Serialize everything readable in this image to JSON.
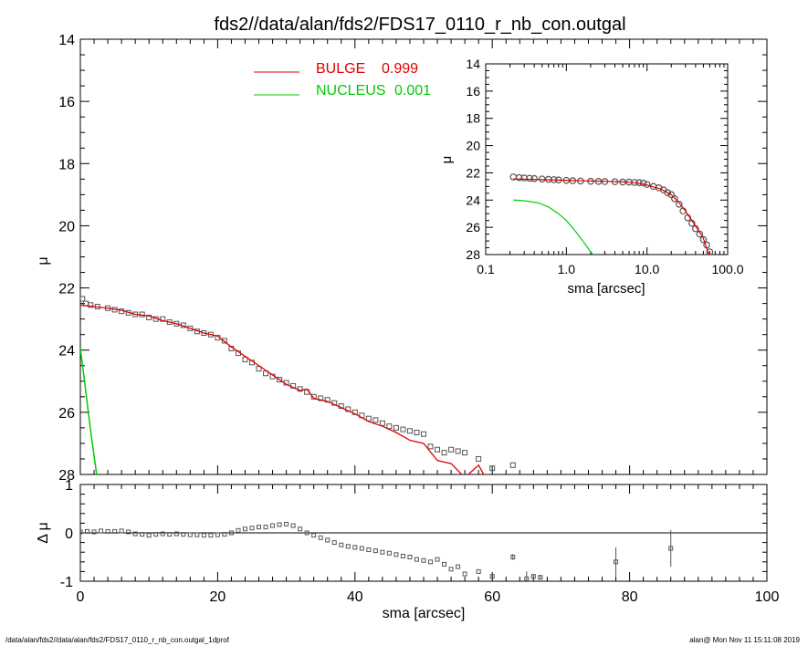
{
  "title": "fds2//data/alan/fds2/FDS17_0110_r_nb_con.outgal",
  "footer_left": "/data/alan/fds2//data/alan/fds2/FDS17_0110_r_nb_con.outgal_1dprof",
  "footer_right": "alan@  Mon Nov 11 15:11:08 2019",
  "colors": {
    "data": "#555555",
    "bulge": "#e00000",
    "nucleus": "#00cc00",
    "axes": "#000000"
  },
  "chart_data": [
    {
      "id": "main",
      "type": "scatter",
      "ylabel": "μ",
      "xlim": [
        0,
        100
      ],
      "ylim": [
        28,
        14
      ],
      "yticks": [
        "14",
        "16",
        "18",
        "20",
        "22",
        "24",
        "26",
        "28"
      ],
      "legend": [
        {
          "name": "BULGE",
          "value": "0.999",
          "color": "#e00000"
        },
        {
          "name": "NUCLEUS",
          "value": "0.001",
          "color": "#00cc00"
        }
      ],
      "legend_position": "top-left",
      "series": [
        {
          "name": "data",
          "x": [
            0.3,
            0.8,
            1.5,
            2.5,
            4,
            5,
            6,
            7,
            8,
            9,
            10,
            11,
            12,
            13,
            14,
            15,
            16,
            17,
            18,
            19,
            20,
            21,
            22,
            23,
            24,
            25,
            26,
            27,
            28,
            29,
            30,
            31,
            32,
            33,
            34,
            35,
            36,
            37,
            38,
            39,
            40,
            41,
            42,
            43,
            44,
            45,
            46,
            47,
            48,
            49,
            50,
            51,
            52,
            53,
            54,
            55,
            56,
            58,
            60,
            63,
            67,
            74
          ],
          "y": [
            22.35,
            22.5,
            22.55,
            22.6,
            22.65,
            22.7,
            22.75,
            22.8,
            22.85,
            22.85,
            22.95,
            23.0,
            23.0,
            23.1,
            23.15,
            23.2,
            23.3,
            23.4,
            23.45,
            23.5,
            23.6,
            23.7,
            23.95,
            24.1,
            24.3,
            24.4,
            24.6,
            24.75,
            24.85,
            24.95,
            25.05,
            25.15,
            25.25,
            25.35,
            25.5,
            25.55,
            25.6,
            25.7,
            25.8,
            25.9,
            26.0,
            26.1,
            26.2,
            26.25,
            26.35,
            26.45,
            26.5,
            26.55,
            26.6,
            26.65,
            26.7,
            27.1,
            27.2,
            27.3,
            27.2,
            27.25,
            27.3,
            27.5,
            27.8,
            27.7,
            28.1,
            28.15
          ]
        },
        {
          "name": "bulge",
          "x": [
            0,
            2,
            4,
            6,
            8,
            10,
            12,
            14,
            16,
            18,
            20,
            22,
            24,
            26,
            28,
            30,
            31,
            32,
            33,
            34,
            36,
            38,
            40,
            42,
            44,
            46,
            48,
            50,
            52,
            54,
            56,
            57,
            58,
            59
          ],
          "y": [
            22.55,
            22.6,
            22.65,
            22.72,
            22.85,
            22.9,
            23.05,
            23.15,
            23.3,
            23.45,
            23.55,
            23.9,
            24.2,
            24.5,
            24.8,
            25.1,
            25.2,
            25.3,
            25.25,
            25.55,
            25.65,
            25.85,
            26.05,
            26.3,
            26.45,
            26.65,
            26.9,
            27.0,
            27.55,
            27.65,
            28.1,
            27.9,
            27.7,
            28.1
          ]
        },
        {
          "name": "nucleus",
          "x": [
            0,
            0.5,
            1,
            1.5,
            2,
            2.5
          ],
          "y": [
            23.95,
            24.8,
            25.7,
            26.6,
            27.4,
            28.2
          ]
        }
      ]
    },
    {
      "id": "residual",
      "type": "scatter",
      "xlabel": "sma [arcsec]",
      "ylabel": "Δ μ",
      "xlim": [
        0,
        100
      ],
      "ylim": [
        -1,
        1
      ],
      "xticks": [
        "0",
        "20",
        "40",
        "60",
        "80",
        "100"
      ],
      "yticks": [
        "1",
        "0",
        "-1"
      ],
      "reference_line": 0,
      "series": [
        {
          "name": "residual",
          "x": [
            0,
            1,
            2,
            3,
            4,
            5,
            6,
            7,
            8,
            9,
            10,
            11,
            12,
            13,
            14,
            15,
            16,
            17,
            18,
            19,
            20,
            21,
            22,
            23,
            24,
            25,
            26,
            27,
            28,
            29,
            30,
            31,
            32,
            33,
            34,
            35,
            36,
            37,
            38,
            39,
            40,
            41,
            42,
            43,
            44,
            45,
            46,
            47,
            48,
            49,
            50,
            51,
            52,
            53,
            54,
            55,
            56,
            58,
            60,
            63,
            65,
            66,
            67,
            78,
            86
          ],
          "y": [
            0.02,
            0.03,
            0.02,
            0.04,
            0.03,
            0.03,
            0.04,
            0.02,
            -0.02,
            -0.03,
            -0.05,
            -0.03,
            -0.02,
            -0.03,
            -0.02,
            -0.03,
            -0.04,
            -0.04,
            -0.05,
            -0.05,
            -0.04,
            -0.03,
            0.0,
            0.05,
            0.08,
            0.1,
            0.12,
            0.12,
            0.15,
            0.17,
            0.18,
            0.15,
            0.08,
            0.0,
            -0.05,
            -0.1,
            -0.15,
            -0.2,
            -0.25,
            -0.28,
            -0.3,
            -0.32,
            -0.35,
            -0.37,
            -0.4,
            -0.42,
            -0.45,
            -0.48,
            -0.5,
            -0.55,
            -0.57,
            -0.6,
            -0.55,
            -0.65,
            -0.75,
            -0.7,
            -0.85,
            -0.8,
            -0.9,
            -0.5,
            -0.95,
            -0.9,
            -0.92,
            -0.6,
            -0.32
          ],
          "err": [
            0,
            0,
            0,
            0,
            0,
            0,
            0,
            0,
            0,
            0,
            0,
            0,
            0,
            0,
            0,
            0,
            0,
            0,
            0,
            0,
            0,
            0,
            0,
            0,
            0,
            0,
            0,
            0,
            0,
            0,
            0,
            0,
            0,
            0,
            0,
            0,
            0,
            0,
            0,
            0,
            0,
            0,
            0,
            0,
            0,
            0,
            0,
            0,
            0,
            0,
            0,
            0,
            0,
            0,
            0,
            0,
            0,
            0,
            0,
            0.06,
            0.15,
            0.05,
            0.05,
            0.3,
            0.38
          ]
        }
      ]
    },
    {
      "id": "inset",
      "type": "scatter",
      "xlabel": "sma [arcsec]",
      "ylabel": "μ",
      "xscale": "log",
      "xlim": [
        0.1,
        100
      ],
      "ylim": [
        28,
        14
      ],
      "xticks": [
        "0.1",
        "1.0",
        "10.0",
        "100.0"
      ],
      "yticks": [
        "14",
        "16",
        "18",
        "20",
        "22",
        "24",
        "26",
        "28"
      ],
      "series": [
        {
          "name": "data",
          "x": [
            0.22,
            0.26,
            0.3,
            0.35,
            0.4,
            0.5,
            0.6,
            0.7,
            0.8,
            1.0,
            1.2,
            1.5,
            2,
            2.5,
            3,
            4,
            5,
            6,
            7,
            8,
            9,
            10,
            12,
            14,
            16,
            18,
            20,
            22,
            25,
            28,
            32,
            36,
            40,
            45,
            50,
            55,
            60
          ],
          "y": [
            22.3,
            22.35,
            22.38,
            22.4,
            22.42,
            22.45,
            22.48,
            22.5,
            22.52,
            22.55,
            22.58,
            22.6,
            22.62,
            22.63,
            22.64,
            22.65,
            22.67,
            22.68,
            22.7,
            22.72,
            22.75,
            22.85,
            23.0,
            23.1,
            23.25,
            23.45,
            23.6,
            23.9,
            24.3,
            24.8,
            25.3,
            25.7,
            26.1,
            26.5,
            26.9,
            27.3,
            27.8
          ]
        },
        {
          "name": "bulge",
          "x": [
            0.22,
            0.5,
            1,
            2,
            3,
            5,
            7,
            10,
            15,
            20,
            25,
            30,
            40,
            50,
            60
          ],
          "y": [
            22.45,
            22.5,
            22.55,
            22.6,
            22.62,
            22.66,
            22.72,
            22.9,
            23.2,
            23.6,
            24.2,
            24.8,
            25.9,
            26.8,
            28.2
          ]
        },
        {
          "name": "nucleus",
          "x": [
            0.22,
            0.3,
            0.45,
            0.6,
            0.8,
            1.0,
            1.3,
            1.6,
            2.0,
            2.3
          ],
          "y": [
            24.0,
            24.05,
            24.2,
            24.5,
            25.0,
            25.5,
            26.3,
            27.0,
            27.8,
            28.2
          ]
        }
      ]
    }
  ]
}
